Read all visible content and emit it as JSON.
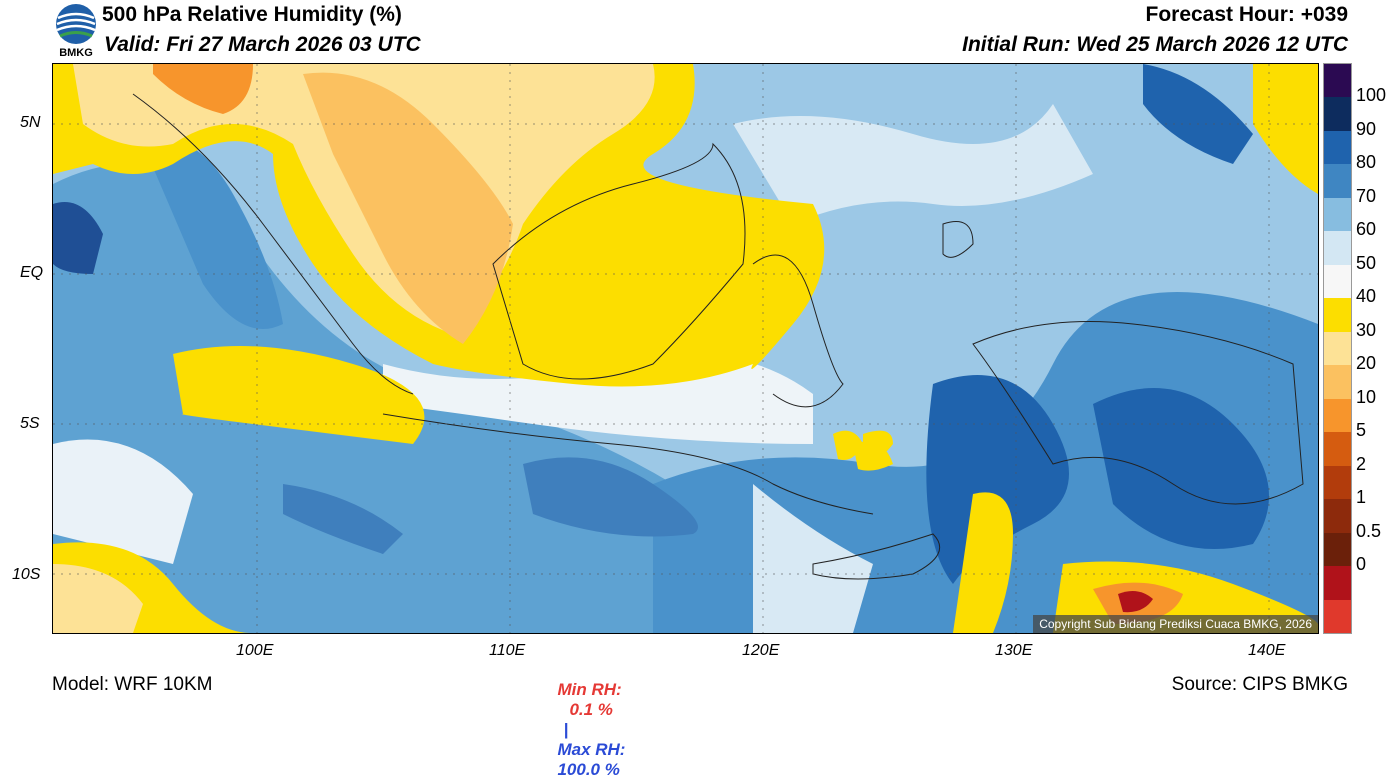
{
  "header": {
    "logo_text": "BMKG",
    "title": "500 hPa Relative Humidity (%)",
    "valid": "Valid: Fri 27 March 2026 03 UTC",
    "forecast_hour": "Forecast Hour: +039",
    "initial_run": "Initial Run: Wed 25 March 2026 12 UTC"
  },
  "map": {
    "lat_ticks": [
      "5N",
      "EQ",
      "5S",
      "10S"
    ],
    "lon_ticks": [
      "100E",
      "110E",
      "120E",
      "130E",
      "140E"
    ],
    "copyright": "Copyright Sub Bidang Prediksi Cuaca BMKG, 2026"
  },
  "colorbar": {
    "labels": [
      "100",
      "90",
      "80",
      "70",
      "60",
      "50",
      "40",
      "30",
      "20",
      "10",
      "5",
      "2",
      "1",
      "0.5",
      "0"
    ],
    "colors": [
      "#2b0a52",
      "#0d2c5e",
      "#1f63ad",
      "#3f86c2",
      "#87bde0",
      "#d3e7f3",
      "#f7f7f7",
      "#fcde00",
      "#fde296",
      "#fbc160",
      "#f7952c",
      "#d55c10",
      "#b23c0c",
      "#8d2a0c",
      "#6b200a",
      "#b0121a",
      "#e0392c"
    ]
  },
  "footer": {
    "model": "Model: WRF 10KM",
    "min_rh_label": "Min RH:",
    "min_rh_value": "0.1 %",
    "separator": "|",
    "max_rh_label": "Max RH:",
    "max_rh_value": "100.0 %",
    "source": "Source: CIPS BMKG"
  },
  "colors": {
    "min_rh": "#e53935",
    "max_rh": "#2b4bd6",
    "ocean_moist": "#3f86c2",
    "dry": "#fcde00"
  }
}
